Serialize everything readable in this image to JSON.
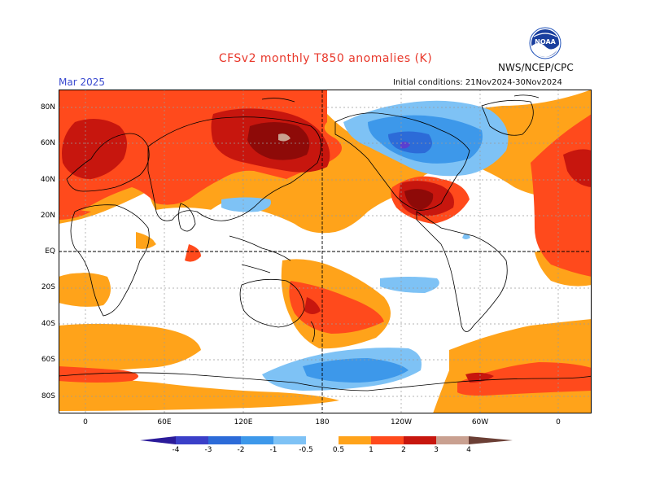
{
  "header": {
    "title": "CFSv2 monthly T850 anomalies (K)",
    "agency": "NWS/NCEP/CPC",
    "logo_text": "NOAA",
    "month": "Mar 2025",
    "initial_conditions": "Initial conditions: 21Nov2024-30Nov2024"
  },
  "axes": {
    "lat_labels": [
      "80N",
      "60N",
      "40N",
      "20N",
      "EQ",
      "20S",
      "40S",
      "60S",
      "80S"
    ],
    "lon_labels": [
      "0",
      "60E",
      "120E",
      "180",
      "120W",
      "60W",
      "0"
    ]
  },
  "colorbar": {
    "levels": [
      "-4",
      "-3",
      "-2",
      "-1",
      "-0.5",
      "0.5",
      "1",
      "2",
      "3",
      "4"
    ],
    "colors": [
      "#2b1b9a",
      "#3a3fc8",
      "#2c6bd8",
      "#3d98ea",
      "#7ec2f5",
      "#ffffff",
      "#ffa31a",
      "#ff4a1c",
      "#c7160e",
      "#8e0a08",
      "#c9a090",
      "#6b3f35"
    ]
  },
  "colors": {
    "title": "#e8372a",
    "month": "#3a4ad0",
    "ocean_land_neutral": "#ffffff",
    "orange": "#ffa31a",
    "red_orange": "#ff4a1c",
    "red": "#c7160e",
    "dark_red": "#8e0a08",
    "light_blue": "#7ec2f5",
    "mid_blue": "#3d98ea",
    "blue": "#2c6bd8",
    "purple": "#5a3fd0"
  }
}
